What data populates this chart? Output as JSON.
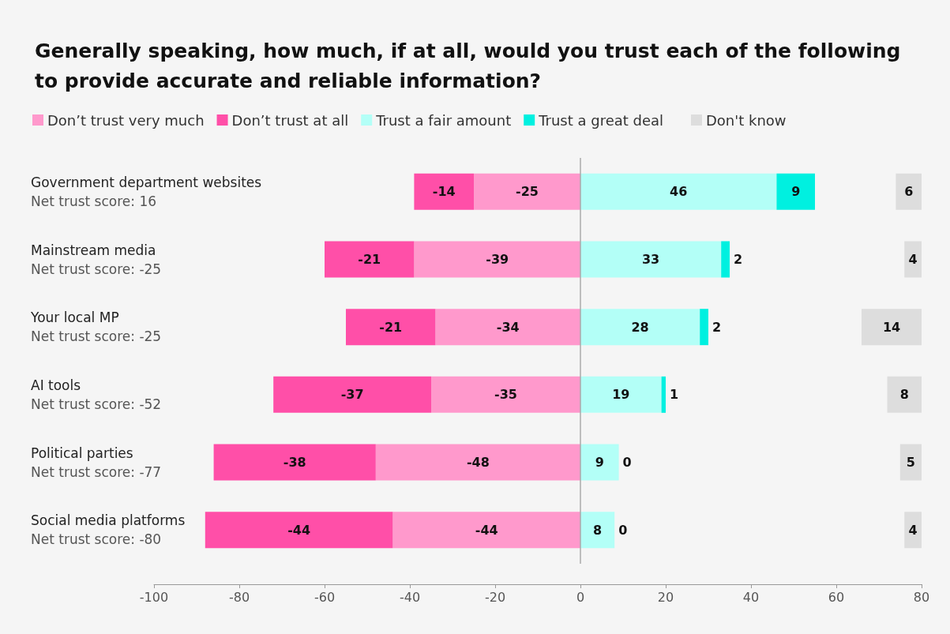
{
  "chart_data": [
    {
      "type": "bar",
      "orientation": "horizontal",
      "stacked": true,
      "title": "Generally speaking, how much, if at all, would you trust each of the following\nto provide accurate and reliable information?",
      "categories": [
        "Government department websites\nNet trust score: 16",
        "Mainstream media\nNet trust score: -25",
        "Your local MP\nNet trust score: -25",
        "AI tools\nNet trust score: -52",
        "Political parties\nNet trust score: -77",
        "Social media platforms\nNet trust score: -80"
      ],
      "series": [
        {
          "name": "Don’t trust very much",
          "color": "#ff99cc",
          "values": [
            -25,
            -39,
            -34,
            -35,
            -48,
            -44
          ]
        },
        {
          "name": "Don’t trust at all",
          "color": "#ff4fa8",
          "values": [
            -14,
            -21,
            -21,
            -37,
            -38,
            -44
          ]
        },
        {
          "name": "Trust a fair amount",
          "color": "#b3fff7",
          "values": [
            46,
            33,
            28,
            19,
            9,
            8
          ]
        },
        {
          "name": "Trust a great deal",
          "color": "#00f0e0",
          "values": [
            9,
            2,
            2,
            1,
            0,
            0
          ]
        }
      ],
      "xlim": [
        -100,
        80
      ],
      "xticks": [
        -100,
        -80,
        -60,
        -40,
        -20,
        0,
        20,
        40,
        60,
        80
      ],
      "ref_lines": [
        {
          "axis": "x",
          "value": 0,
          "color": "#aaaaaa"
        }
      ],
      "data_labels": true,
      "legend": "top left"
    },
    {
      "type": "bar",
      "orientation": "horizontal",
      "categories": [
        null,
        null,
        null,
        null,
        null,
        null
      ],
      "series": [
        {
          "name": "Don't know",
          "color": "#dddddd",
          "values": [
            6,
            4,
            14,
            8,
            5,
            4
          ]
        }
      ],
      "data_labels": true,
      "legend": "top left"
    }
  ]
}
